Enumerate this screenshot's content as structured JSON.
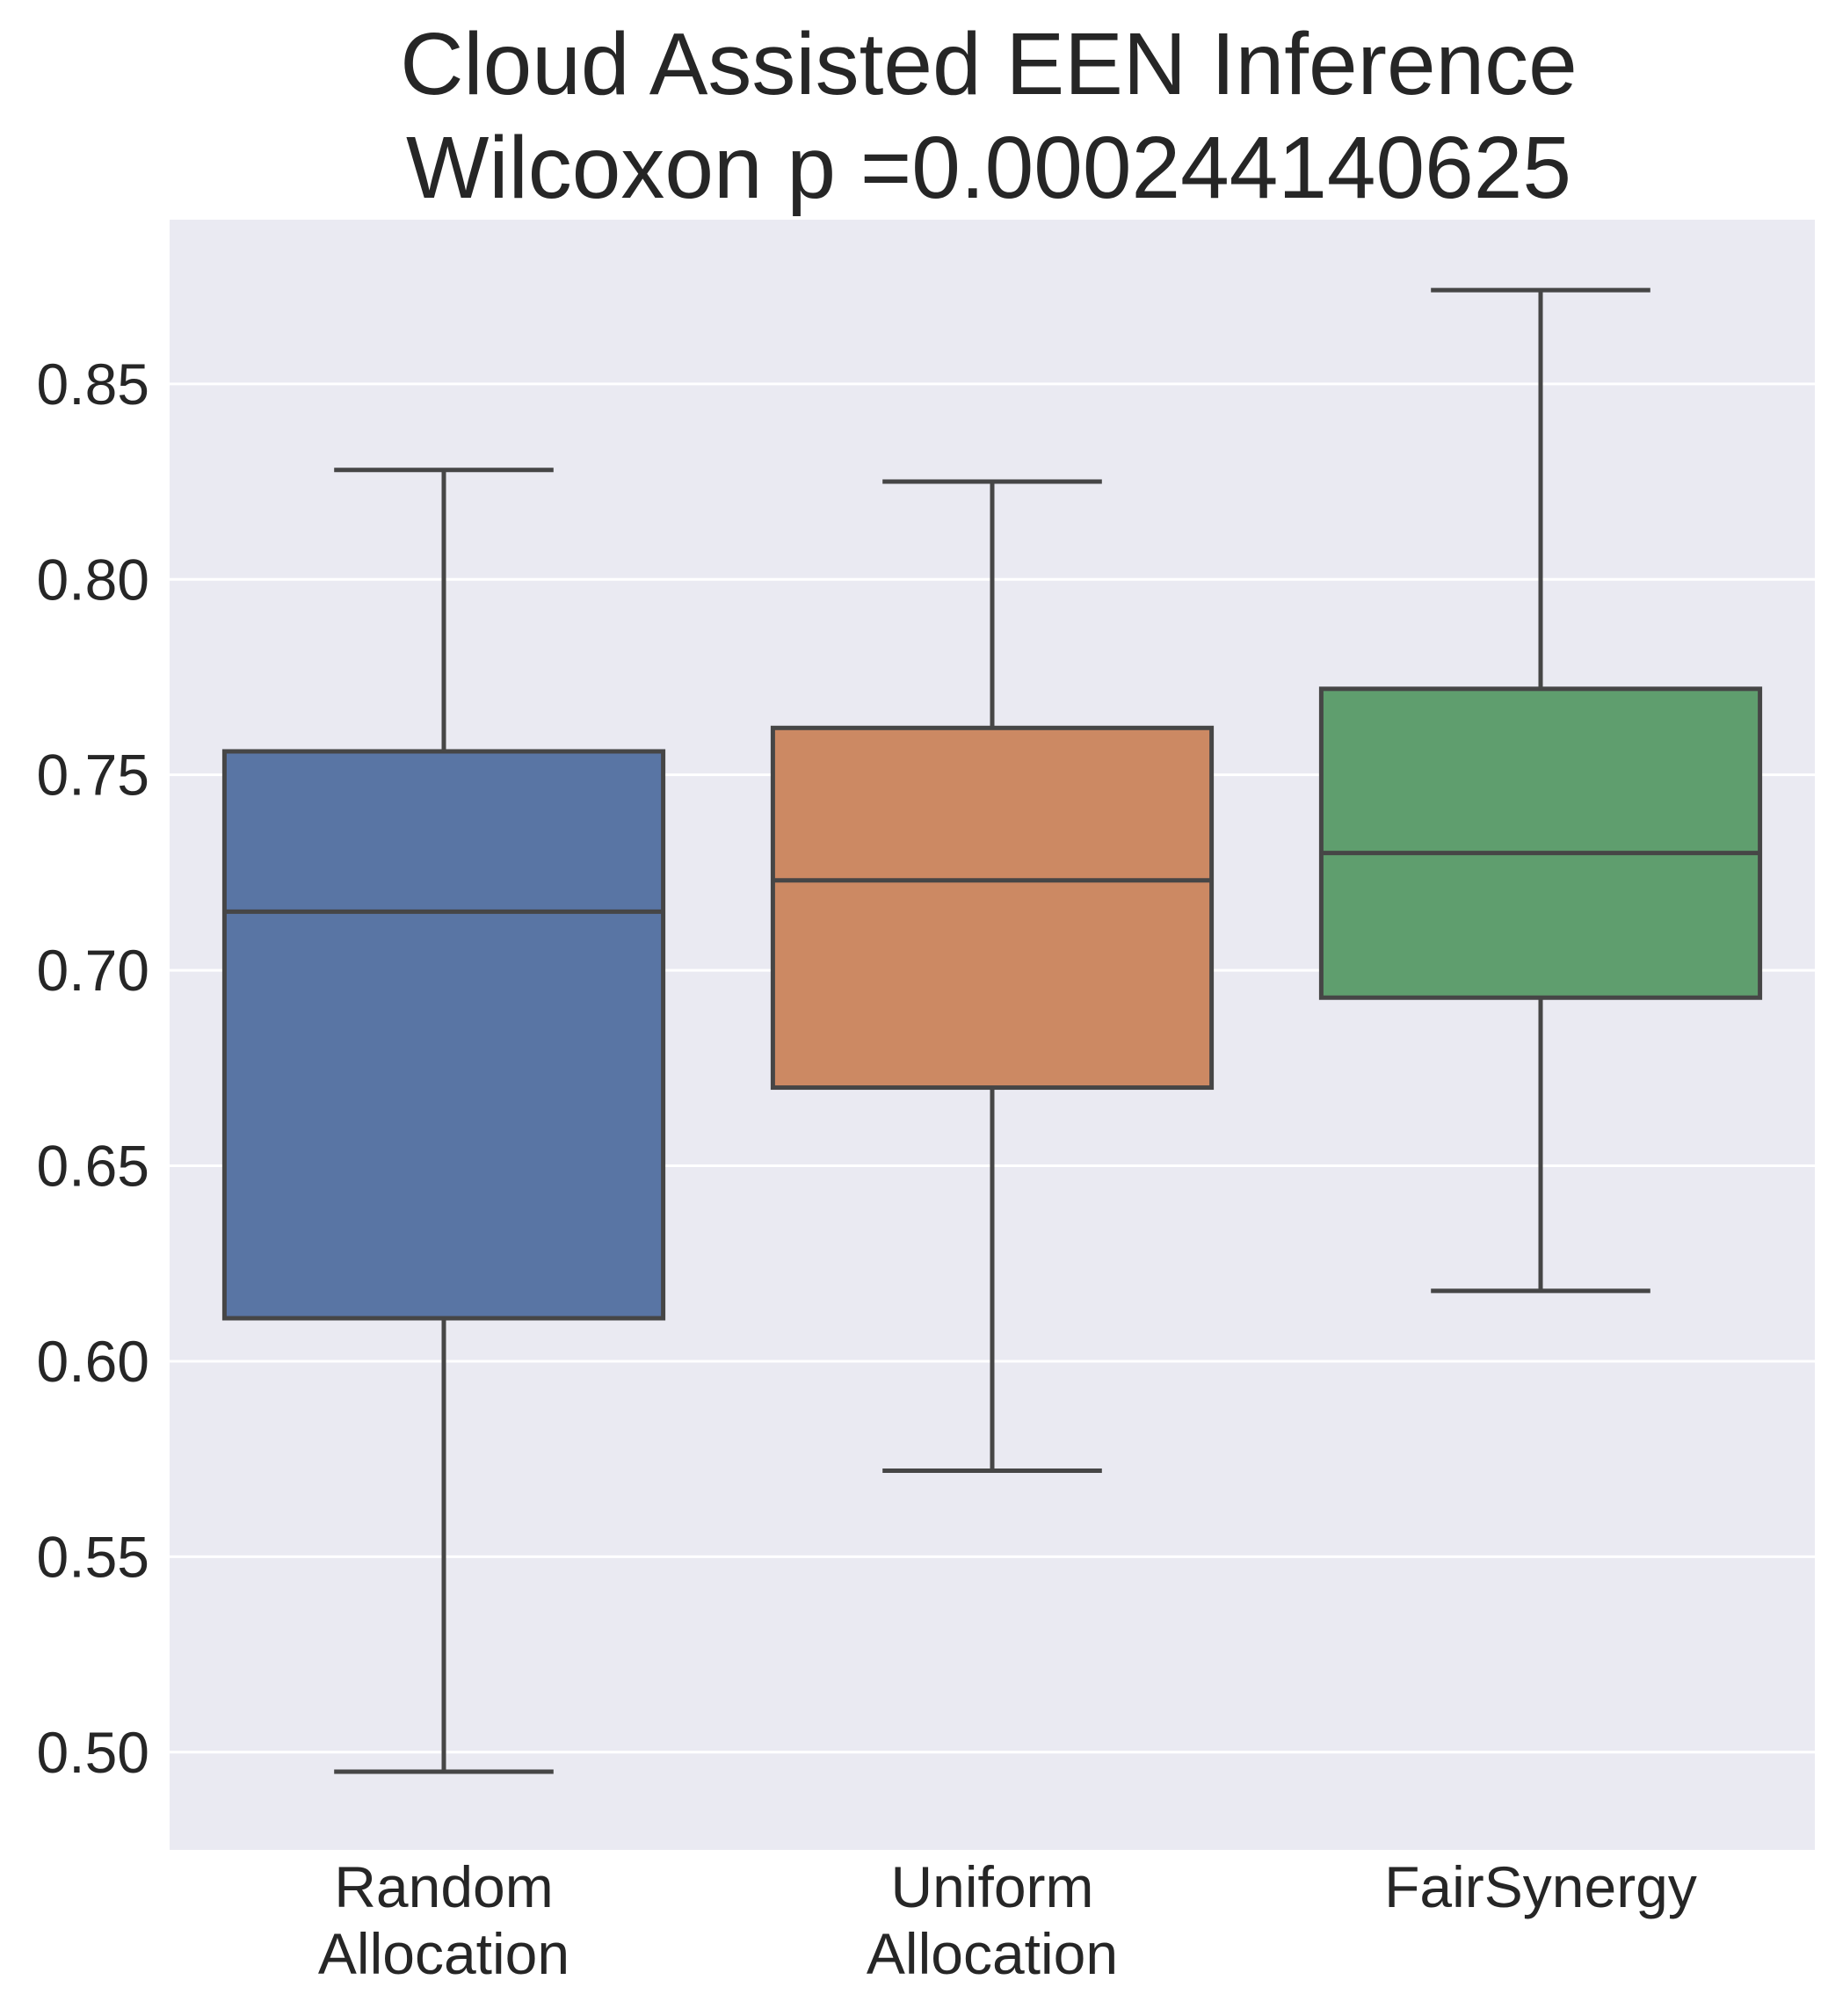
{
  "chart_data": {
    "type": "box",
    "title_lines": [
      "Cloud Assisted EEN Inference",
      "Wilcoxon p =0.000244140625"
    ],
    "xlabel": "",
    "ylabel": "",
    "ylim": [
      0.475,
      0.892
    ],
    "yticks": [
      {
        "value": 0.5,
        "label": "0.50"
      },
      {
        "value": 0.55,
        "label": "0.55"
      },
      {
        "value": 0.6,
        "label": "0.60"
      },
      {
        "value": 0.65,
        "label": "0.65"
      },
      {
        "value": 0.7,
        "label": "0.70"
      },
      {
        "value": 0.75,
        "label": "0.75"
      },
      {
        "value": 0.8,
        "label": "0.80"
      },
      {
        "value": 0.85,
        "label": "0.85"
      }
    ],
    "grid": true,
    "categories": [
      {
        "lines": [
          "Random",
          "Allocation"
        ],
        "color": "#5975a4",
        "min": 0.495,
        "q1": 0.611,
        "median": 0.715,
        "q3": 0.756,
        "max": 0.828
      },
      {
        "lines": [
          "Uniform",
          "Allocation"
        ],
        "color": "#cc8963",
        "min": 0.572,
        "q1": 0.67,
        "median": 0.723,
        "q3": 0.762,
        "max": 0.825
      },
      {
        "lines": [
          "FairSynergy"
        ],
        "color": "#5f9e6e",
        "min": 0.618,
        "q1": 0.693,
        "median": 0.73,
        "q3": 0.772,
        "max": 0.874
      }
    ]
  }
}
